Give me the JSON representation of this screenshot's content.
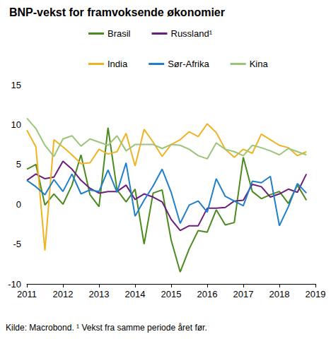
{
  "chart_data": {
    "type": "line",
    "title": "BNP-vekst for framvoksende økonomier",
    "source": "Kilde: Macrobond. ¹ Vekst fra samme periode året før.",
    "x": [
      2011,
      2011.25,
      2011.5,
      2011.75,
      2012,
      2012.25,
      2012.5,
      2012.75,
      2013,
      2013.25,
      2013.5,
      2013.75,
      2014,
      2014.25,
      2014.5,
      2014.75,
      2015,
      2015.25,
      2015.5,
      2015.75,
      2016,
      2016.25,
      2016.5,
      2016.75,
      2017,
      2017.25,
      2017.5,
      2017.75,
      2018,
      2018.25,
      2018.5,
      2018.75
    ],
    "series": [
      {
        "name": "Brasil",
        "color": "#4a8a1f",
        "values": [
          4.4,
          5.0,
          -0.1,
          1.3,
          0,
          2.4,
          6.2,
          1.2,
          -0.3,
          9.6,
          1.8,
          0.3,
          1.9,
          -5,
          1.4,
          1.8,
          -4.5,
          -8.5,
          -5.6,
          -3.3,
          -3.5,
          -0.7,
          -2.6,
          -2.3,
          5.9,
          1.6,
          0.7,
          1.2,
          1.6,
          0.1,
          2.4,
          0.5
        ]
      },
      {
        "name": "Russland¹",
        "color": "#6b1e7a",
        "values": [
          3.0,
          3.8,
          3.2,
          3.4,
          5.4,
          4.4,
          3.0,
          2.0,
          1.4,
          1.6,
          1.6,
          2.4,
          0.6,
          1.3,
          0.9,
          0.3,
          -1.9,
          -3.3,
          -2.7,
          -2.7,
          -0.5,
          -0.5,
          -0.4,
          0.4,
          0.5,
          2.5,
          2.2,
          0.9,
          1.3,
          1.9,
          1.5,
          3.8
        ]
      },
      {
        "name": "India",
        "color": "#f0b323",
        "values": [
          9.3,
          7.2,
          -5.8,
          8.1,
          7.2,
          6.2,
          5.1,
          5.2,
          6.9,
          6.3,
          6.6,
          8.9,
          4.8,
          9.4,
          7.8,
          6.0,
          7.5,
          8.1,
          9.1,
          8.5,
          10.1,
          9.0,
          6.9,
          5.9,
          6.9,
          6.4,
          8.8,
          8.1,
          7.4,
          7.1,
          6.1,
          6.6
        ]
      },
      {
        "name": "Sør-Afrika",
        "color": "#1f7fc8",
        "values": [
          3.0,
          2.2,
          1.2,
          3.1,
          1.6,
          3.8,
          1.3,
          1.8,
          1.6,
          4.3,
          1.5,
          5.2,
          -1.5,
          0.5,
          2.3,
          4.4,
          1.5,
          -2.4,
          -0.1,
          0.4,
          -1.0,
          3.2,
          1.0,
          0.4,
          -0.2,
          2.9,
          2.7,
          3.5,
          -2.7,
          -0.3,
          2.6,
          1.4
        ]
      },
      {
        "name": "Kina",
        "color": "#9cc47a",
        "values": [
          10.8,
          9.5,
          7.4,
          6.0,
          8.2,
          8.6,
          7.3,
          8.2,
          7.8,
          7.4,
          8.6,
          6.7,
          7.5,
          7.5,
          7.5,
          7.0,
          7.5,
          7.4,
          6.9,
          6.1,
          5.7,
          7.7,
          6.9,
          6.6,
          6.1,
          7.4,
          7.1,
          6.7,
          6.2,
          7.0,
          6.6,
          6.2
        ]
      }
    ],
    "xlim": [
      2011,
      2019
    ],
    "xticks": [
      2011,
      2012,
      2013,
      2014,
      2015,
      2016,
      2017,
      2018,
      2019
    ],
    "ylim": [
      -10,
      15
    ],
    "yticks": [
      -10,
      -5,
      0,
      5,
      10,
      15
    ],
    "grid": false,
    "legend": "top"
  }
}
